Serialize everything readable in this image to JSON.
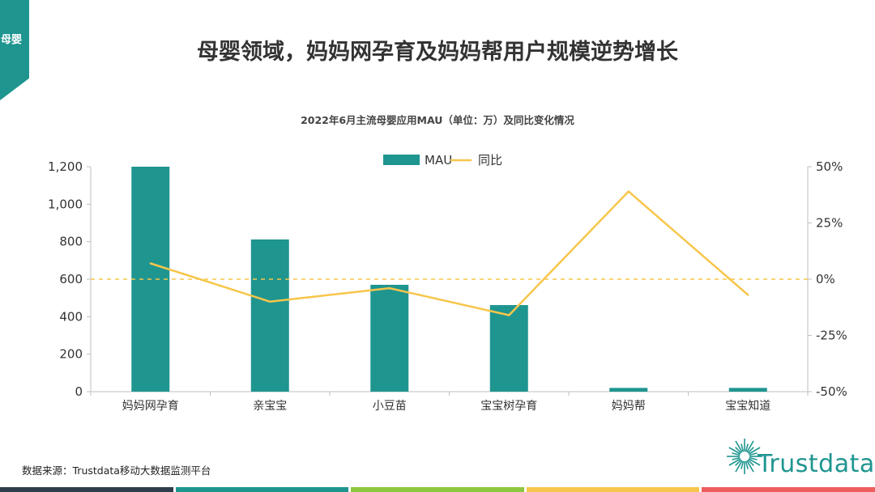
{
  "section_tag": "母婴",
  "title": "母婴领域，妈妈网孕育及妈妈帮用户规模逆势增长",
  "chart_title": "2022年6月主流母婴应用MAU（单位：万）及同比变化情况",
  "source": "数据来源：Trustdata移动大数据监测平台",
  "logo_text": "Trustdata",
  "colors": {
    "bar": "#1f9590",
    "line": "#f7c64a",
    "tag": "#1f9590",
    "bottom_bar": [
      "#2f3e4c",
      "#1f9590",
      "#8dc63f",
      "#f7c64a",
      "#ee5e5e"
    ]
  },
  "chart_data": {
    "type": "bar+line",
    "categories": [
      "妈妈网孕育",
      "亲宝宝",
      "小豆苗",
      "宝宝树孕育",
      "妈妈帮",
      "宝宝知道"
    ],
    "series": [
      {
        "name": "MAU",
        "type": "bar",
        "axis": "left",
        "values": [
          1200,
          812,
          570,
          462,
          20,
          20
        ]
      },
      {
        "name": "同比",
        "type": "line",
        "axis": "right",
        "values": [
          0.07,
          -0.1,
          -0.04,
          -0.16,
          0.39,
          -0.07
        ]
      }
    ],
    "y_left": {
      "min": 0,
      "max": 1200,
      "ticks": [
        0,
        200,
        400,
        600,
        800,
        1000,
        1200
      ],
      "tick_labels": [
        "0",
        "200",
        "400",
        "600",
        "800",
        "1,000",
        "1,200"
      ]
    },
    "y_right": {
      "min": -0.5,
      "max": 0.5,
      "ticks": [
        -0.5,
        -0.25,
        0,
        0.25,
        0.5
      ],
      "tick_labels": [
        "-50%",
        "-25%",
        "0%",
        "25%",
        "50%"
      ]
    },
    "reference_line": {
      "axis": "right",
      "value": 0,
      "style": "dashed"
    },
    "legend": [
      "MAU",
      "同比"
    ],
    "legend_position": "top"
  }
}
